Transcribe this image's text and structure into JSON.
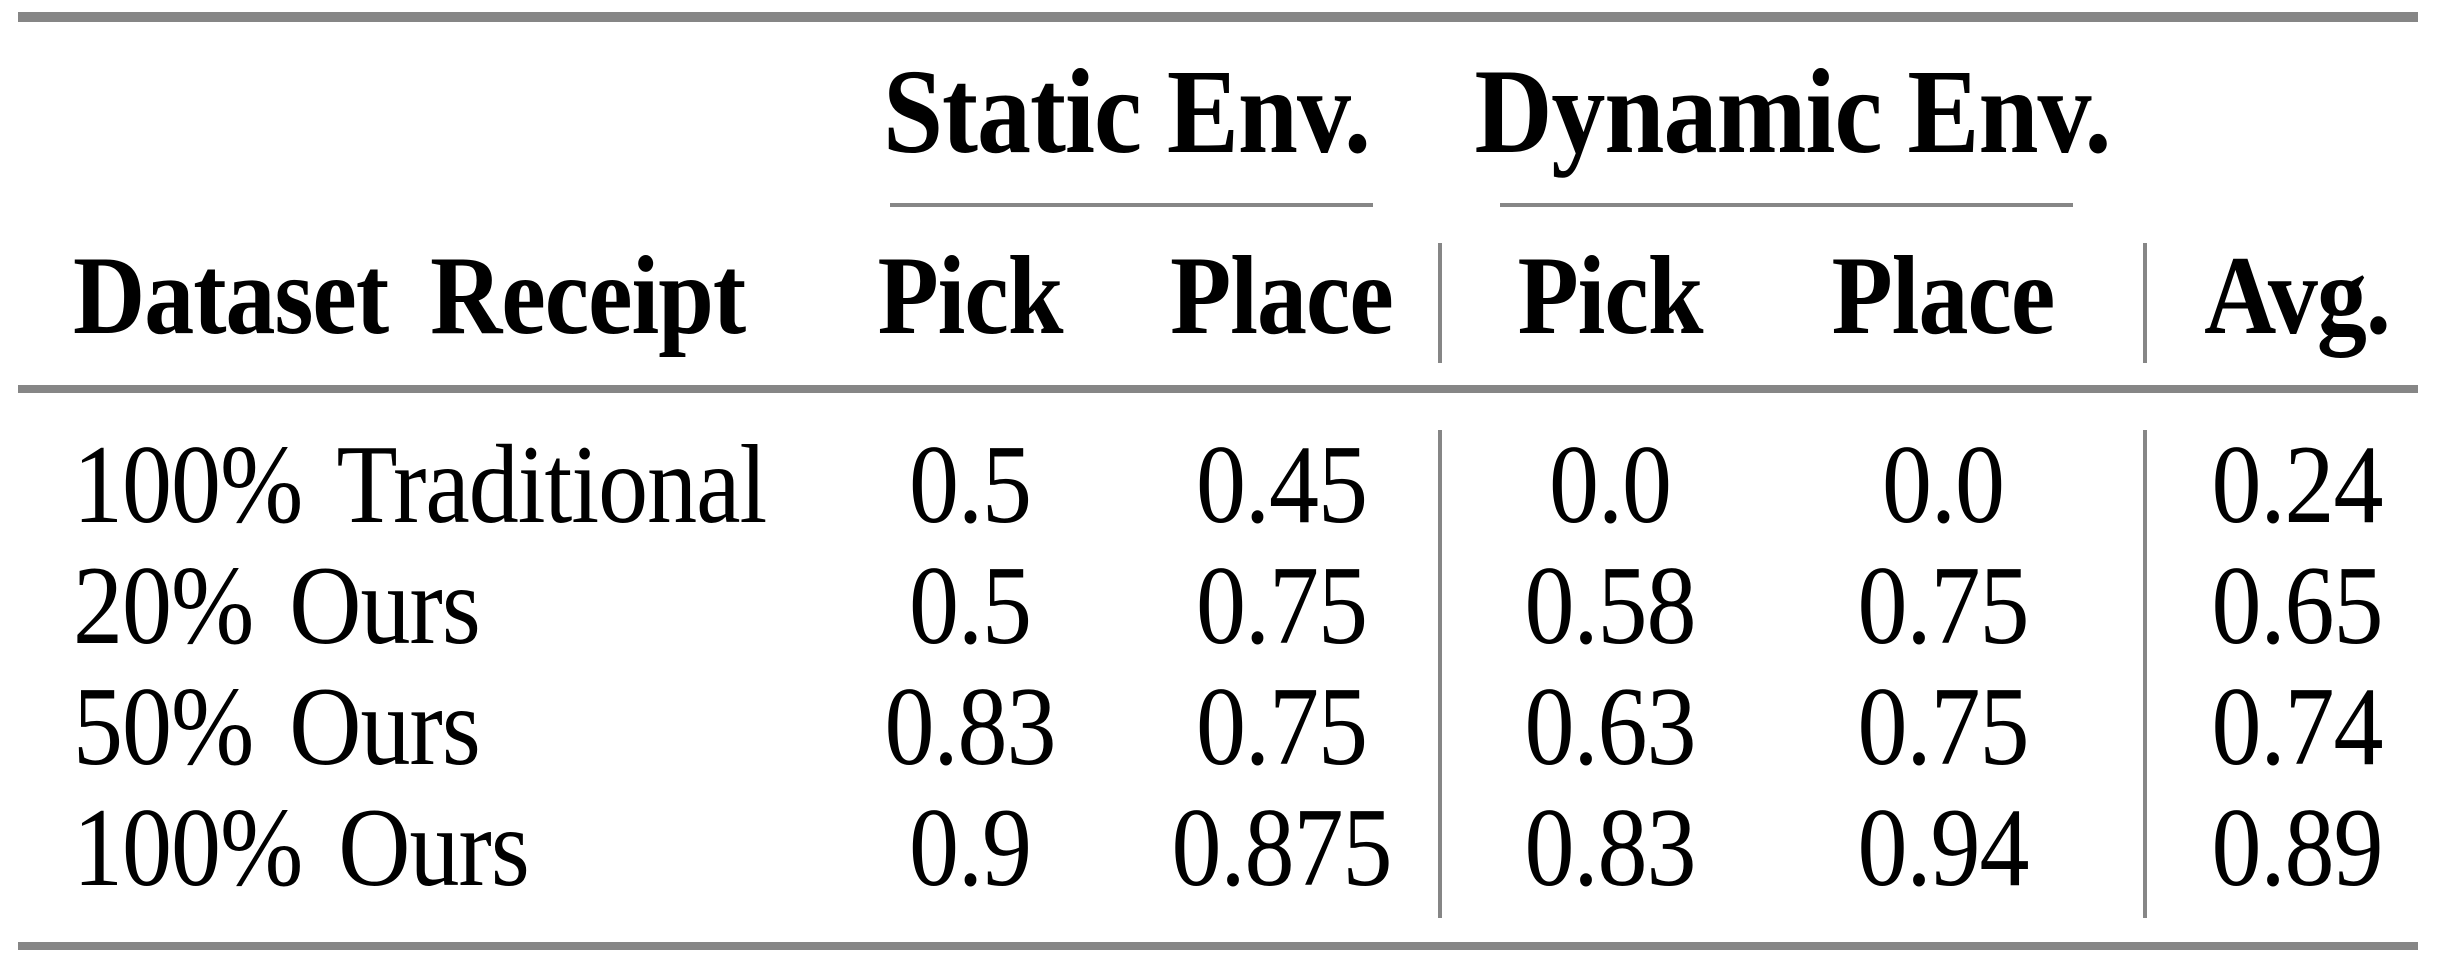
{
  "table": {
    "corner_header": "Dataset Receipt",
    "groups": [
      {
        "label": "Static Env.",
        "columns": [
          "Pick",
          "Place"
        ]
      },
      {
        "label": "Dynamic Env.",
        "columns": [
          "Pick",
          "Place"
        ]
      }
    ],
    "avg_header": "Avg.",
    "rows": [
      {
        "label": "100% Traditional",
        "values": [
          "0.5",
          "0.45",
          "0.0",
          "0.0",
          "0.24"
        ]
      },
      {
        "label": "20% Ours",
        "values": [
          "0.5",
          "0.75",
          "0.58",
          "0.75",
          "0.65"
        ]
      },
      {
        "label": "50% Ours",
        "values": [
          "0.83",
          "0.75",
          "0.63",
          "0.75",
          "0.74"
        ]
      },
      {
        "label": "100% Ours",
        "values": [
          "0.9",
          "0.875",
          "0.83",
          "0.94",
          "0.89"
        ]
      }
    ],
    "colors": {
      "rule_gray": "#868686",
      "text": "#000000",
      "background": "#ffffff"
    }
  }
}
